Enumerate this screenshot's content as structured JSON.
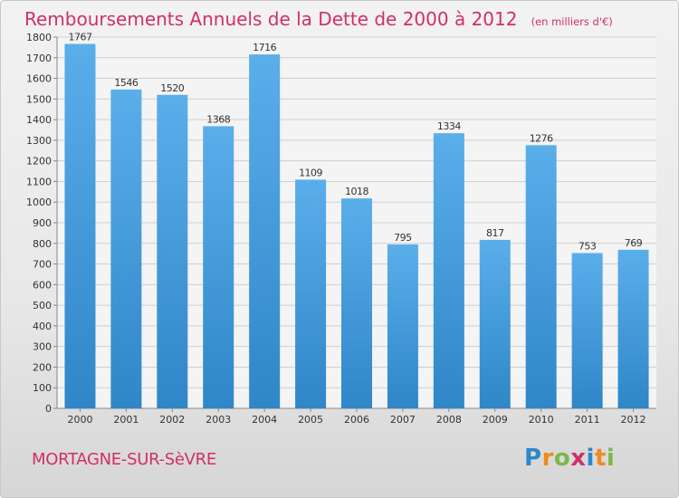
{
  "title": "Remboursements Annuels de la Dette de 2000 à 2012",
  "subtitle": "(en milliers d'€)",
  "commune": "MORTAGNE-SUR-SèVRE",
  "logo": {
    "text": "Proxiti",
    "letters": [
      {
        "ch": "P",
        "color": "#2f86c8"
      },
      {
        "ch": "r",
        "color": "#f08a1c"
      },
      {
        "ch": "o",
        "color": "#7ab84a"
      },
      {
        "ch": "x",
        "color": "#d02f6a"
      },
      {
        "ch": "i",
        "color": "#2f86c8"
      },
      {
        "ch": "t",
        "color": "#f08a1c"
      },
      {
        "ch": "i",
        "color": "#7ab84a"
      }
    ]
  },
  "colors": {
    "title": "#d02f6a",
    "bar_top": "#5aaeea",
    "bar_bottom": "#2f86c8",
    "grid": "#cfcfcf"
  },
  "chart_data": {
    "type": "bar",
    "categories": [
      "2000",
      "2001",
      "2002",
      "2003",
      "2004",
      "2005",
      "2006",
      "2007",
      "2008",
      "2009",
      "2010",
      "2011",
      "2012"
    ],
    "values": [
      1767,
      1546,
      1520,
      1368,
      1716,
      1109,
      1018,
      795,
      1334,
      817,
      1276,
      753,
      769
    ],
    "ylim": [
      0,
      1800
    ],
    "yticks": [
      0,
      100,
      200,
      300,
      400,
      500,
      600,
      700,
      800,
      900,
      1000,
      1100,
      1200,
      1300,
      1400,
      1500,
      1600,
      1700,
      1800
    ],
    "grid": true,
    "data_labels": true
  }
}
